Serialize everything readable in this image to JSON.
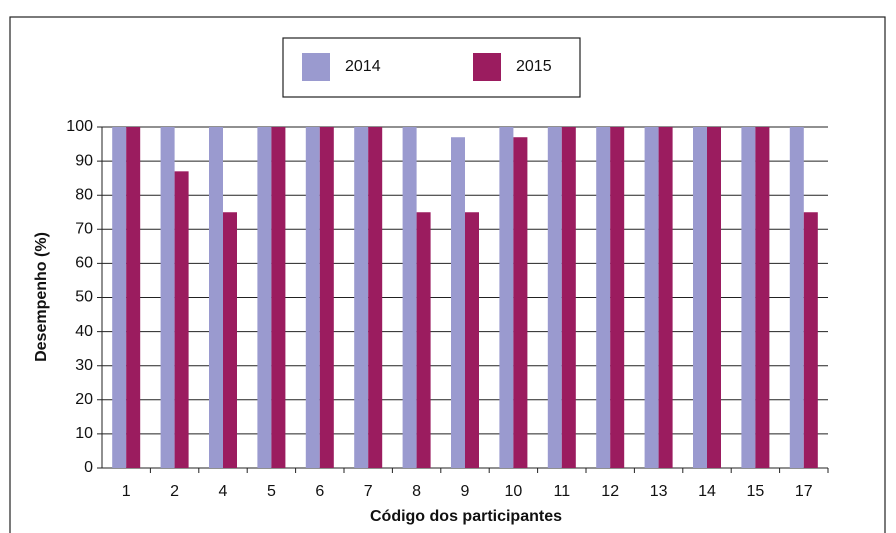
{
  "chart_data": {
    "type": "bar",
    "xlabel": "Código dos participantes",
    "ylabel": "Desempenho (%)",
    "categories": [
      "1",
      "2",
      "4",
      "5",
      "6",
      "7",
      "8",
      "9",
      "10",
      "11",
      "12",
      "13",
      "14",
      "15",
      "17"
    ],
    "series": [
      {
        "name": "2014",
        "color": "#9a9acf",
        "values": [
          100,
          100,
          100,
          100,
          100,
          100,
          100,
          97,
          100,
          100,
          100,
          100,
          100,
          100,
          100
        ]
      },
      {
        "name": "2015",
        "color": "#9b1c5f",
        "values": [
          100,
          87,
          75,
          100,
          100,
          100,
          75,
          75,
          97,
          100,
          100,
          100,
          100,
          100,
          75
        ]
      }
    ],
    "ylim": [
      0,
      100
    ],
    "yticks": [
      0,
      10,
      20,
      30,
      40,
      50,
      60,
      70,
      80,
      90,
      100
    ],
    "grid": true
  }
}
